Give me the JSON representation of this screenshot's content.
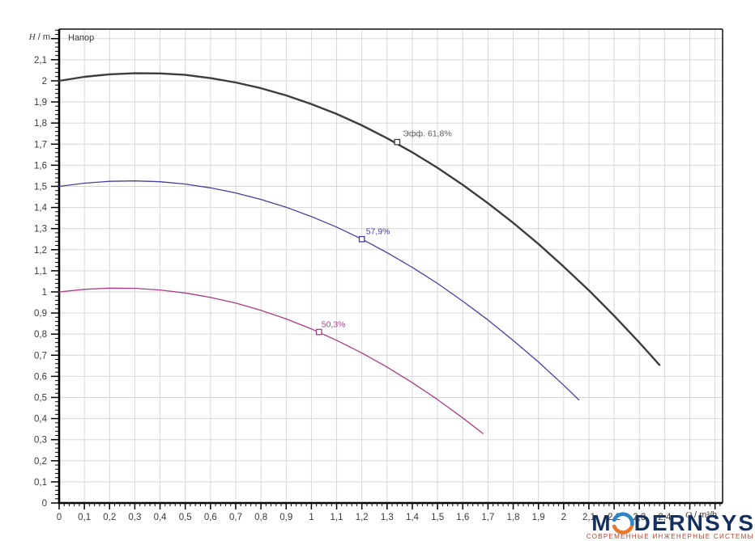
{
  "chart_data": {
    "type": "line",
    "title": "Напор",
    "ylabel_symbol": "H",
    "ylabel_unit": " / m",
    "xlabel_symbol": "Q",
    "xlabel_unit": " / m³/h",
    "xlim": [
      0,
      2.63
    ],
    "ylim": [
      0,
      2.245
    ],
    "grid": true,
    "legend": "none",
    "x_major_step": 0.1,
    "x_minor_step": 0.02,
    "y_major_step": 0.1,
    "y_minor_step": 0.02,
    "x_tick_labels": [
      "0",
      "0,1",
      "0,2",
      "0,3",
      "0,4",
      "0,5",
      "0,6",
      "0,7",
      "0,8",
      "0,9",
      "1",
      "1,1",
      "1,2",
      "1,3",
      "1,4",
      "1,5",
      "1,6",
      "1,7",
      "1,8",
      "1,9",
      "2",
      "2,1",
      "2,2",
      "2,3",
      "2,4"
    ],
    "y_tick_labels": [
      "0",
      "0,1",
      "0,2",
      "0,3",
      "0,4",
      "0,5",
      "0,6",
      "0,7",
      "0,8",
      "0,9",
      "1",
      "1,1",
      "1,2",
      "1,3",
      "1,4",
      "1,5",
      "1,6",
      "1,7",
      "1,8",
      "1,9",
      "2",
      "2,1"
    ],
    "series": [
      {
        "name": "speed-3-curve",
        "label": "Эфф.  61,8%",
        "color": "#3d3d3d",
        "label_color": "#5a5a5a",
        "width": 2.4,
        "x": [
          0,
          0.1,
          0.2,
          0.3,
          0.4,
          0.5,
          0.6,
          0.7,
          0.8,
          0.9,
          1.0,
          1.1,
          1.2,
          1.3,
          1.4,
          1.5,
          1.6,
          1.7,
          1.8,
          1.9,
          2.0,
          2.1,
          2.2,
          2.3,
          2.38
        ],
        "y": [
          2.0,
          2.019,
          2.031,
          2.036,
          2.035,
          2.028,
          2.013,
          1.992,
          1.965,
          1.931,
          1.89,
          1.843,
          1.789,
          1.728,
          1.661,
          1.588,
          1.507,
          1.42,
          1.327,
          1.227,
          1.12,
          1.007,
          0.887,
          0.76,
          0.654
        ],
        "marker": {
          "x": 1.34,
          "y": 1.71,
          "label_dx": 7,
          "label_dy": -7
        }
      },
      {
        "name": "speed-2-curve",
        "label": "57,9%",
        "color": "#4340a2",
        "label_color": "#4340a2",
        "width": 1.3,
        "x": [
          0,
          0.1,
          0.2,
          0.3,
          0.4,
          0.5,
          0.6,
          0.7,
          0.8,
          0.9,
          1.0,
          1.1,
          1.2,
          1.3,
          1.4,
          1.5,
          1.6,
          1.7,
          1.8,
          1.9,
          2.0,
          2.06
        ],
        "y": [
          1.5,
          1.515,
          1.524,
          1.526,
          1.522,
          1.511,
          1.493,
          1.469,
          1.438,
          1.401,
          1.357,
          1.307,
          1.25,
          1.186,
          1.116,
          1.04,
          0.956,
          0.867,
          0.77,
          0.668,
          0.558,
          0.489
        ],
        "marker": {
          "x": 1.2,
          "y": 1.25,
          "label_dx": 5,
          "label_dy": -6
        }
      },
      {
        "name": "speed-1-curve",
        "label": "50,3%",
        "color": "#ab3c86",
        "label_color": "#b93a8d",
        "width": 1.3,
        "x": [
          0,
          0.1,
          0.2,
          0.3,
          0.4,
          0.5,
          0.6,
          0.7,
          0.8,
          0.9,
          1.0,
          1.1,
          1.2,
          1.3,
          1.4,
          1.5,
          1.6,
          1.68
        ],
        "y": [
          1.0,
          1.012,
          1.018,
          1.017,
          1.009,
          0.995,
          0.974,
          0.947,
          0.913,
          0.872,
          0.825,
          0.771,
          0.711,
          0.644,
          0.57,
          0.49,
          0.403,
          0.329
        ],
        "marker": {
          "x": 1.03,
          "y": 0.81,
          "label_dx": 3,
          "label_dy": -6
        }
      }
    ]
  },
  "styles": {
    "grid_color": "#d7d7d7",
    "frame_color": "#4a4a4a",
    "axis_color": "#000000",
    "tick_label_color": "#3a3a3a",
    "marker_fill": "#ffffff"
  },
  "logo": {
    "prefix": "M",
    "rest": "DERNSYS",
    "subtitle": "СОВРЕМЕННЫЕ ИНЖЕНЕРНЫЕ СИСТЕМЫ",
    "text_color": "#14305e",
    "arc_top_color": "#2e86c8",
    "arc_bottom_color": "#e87a2e",
    "subtitle_color": "#b5442c"
  }
}
